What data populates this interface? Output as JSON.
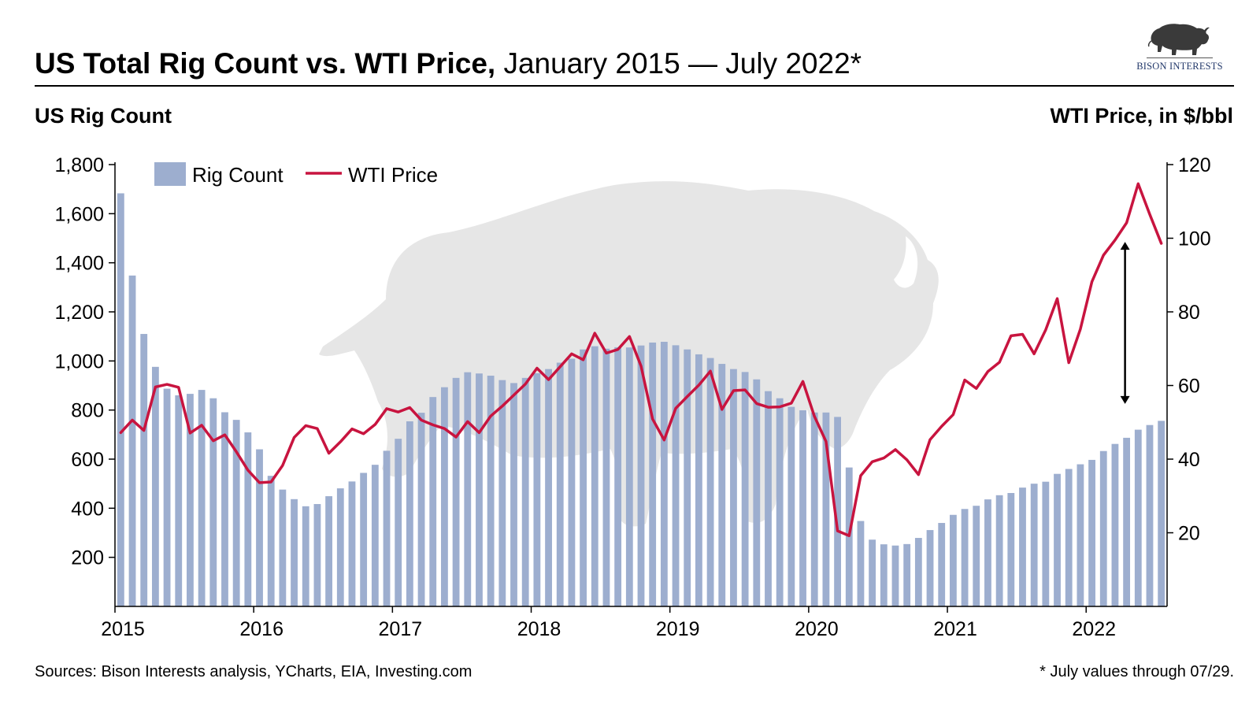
{
  "title": {
    "bold": "US Total Rig Count vs. WTI Price,",
    "regular": " January 2015 — July 2022*"
  },
  "logo": {
    "text": "BISON INTERESTS",
    "icon": "bison-icon"
  },
  "left_axis_title": "US Rig Count",
  "right_axis_title": "WTI Price, in $/bbl",
  "footer": {
    "sources": "Sources: Bison Interests analysis, YCharts, EIA, Investing.com",
    "note": "* July values through 07/29."
  },
  "colors": {
    "bars": "#9daecf",
    "line": "#c8143f",
    "watermark": "#e3e3e3",
    "axis": "#000000"
  },
  "chart_data": {
    "type": "bar+line",
    "title": "US Total Rig Count vs. WTI Price, January 2015 — July 2022*",
    "legend": {
      "position": "top-left",
      "entries": [
        "Rig Count",
        "WTI Price"
      ]
    },
    "y_left": {
      "label": "US Rig Count",
      "range": [
        0,
        1800
      ],
      "ticks": [
        200,
        400,
        600,
        800,
        1000,
        1200,
        1400,
        1600,
        1800
      ],
      "tick_labels": [
        "200",
        "400",
        "600",
        "800",
        "1,000",
        "1,200",
        "1,400",
        "1,600",
        "1,800"
      ]
    },
    "y_right": {
      "label": "WTI Price, in $/bbl",
      "range": [
        0,
        120
      ],
      "ticks": [
        20,
        40,
        60,
        80,
        100,
        120
      ],
      "tick_labels": [
        "20",
        "40",
        "60",
        "80",
        "100",
        "120"
      ]
    },
    "x_axis": {
      "labels": [
        "2015",
        "2016",
        "2017",
        "2018",
        "2019",
        "2020",
        "2021",
        "2022"
      ]
    },
    "start": "2015-01",
    "series": [
      {
        "name": "Rig Count",
        "type": "bar",
        "axis": "left",
        "values": [
          1683,
          1348,
          1110,
          976,
          887,
          860,
          866,
          882,
          848,
          791,
          760,
          709,
          640,
          532,
          476,
          437,
          408,
          417,
          449,
          481,
          509,
          544,
          577,
          634,
          683,
          754,
          789,
          853,
          893,
          931,
          954,
          949,
          940,
          922,
          910,
          931,
          950,
          967,
          993,
          1009,
          1047,
          1060,
          1050,
          1056,
          1055,
          1063,
          1075,
          1078,
          1064,
          1047,
          1027,
          1012,
          988,
          967,
          955,
          925,
          877,
          848,
          813,
          799,
          790,
          790,
          772,
          566,
          348,
          272,
          253,
          248,
          254,
          279,
          311,
          340,
          373,
          397,
          410,
          436,
          453,
          462,
          484,
          500,
          508,
          540,
          560,
          579,
          597,
          633,
          662,
          687,
          720,
          739,
          756
        ]
      },
      {
        "name": "WTI Price",
        "type": "line",
        "axis": "right",
        "values": [
          47.2,
          50.6,
          47.8,
          59.6,
          60.3,
          59.5,
          47.1,
          49.2,
          45.0,
          46.6,
          42.0,
          37.0,
          33.6,
          33.8,
          38.3,
          45.9,
          49.1,
          48.3,
          41.6,
          44.7,
          48.2,
          46.9,
          49.4,
          53.7,
          52.8,
          54.0,
          50.6,
          49.3,
          48.3,
          46.0,
          50.2,
          47.2,
          51.7,
          54.4,
          57.4,
          60.4,
          64.7,
          61.6,
          65.1,
          68.6,
          67.0,
          74.2,
          68.8,
          69.8,
          73.3,
          65.3,
          50.9,
          45.2,
          53.8,
          57.0,
          60.1,
          63.9,
          53.5,
          58.6,
          58.8,
          55.1,
          54.1,
          54.2,
          55.2,
          61.1,
          51.6,
          44.8,
          20.5,
          19.2,
          35.5,
          39.3,
          40.3,
          42.6,
          39.8,
          35.8,
          45.3,
          48.9,
          52.1,
          61.5,
          59.2,
          63.8,
          66.3,
          73.5,
          73.9,
          68.6,
          75.1,
          83.6,
          66.2,
          75.3,
          88.2,
          95.4,
          99.5,
          104.2,
          114.8,
          106.5,
          98.6
        ]
      }
    ],
    "annotation": {
      "type": "double-arrow",
      "description": "gap between WTI price and rig count"
    }
  }
}
